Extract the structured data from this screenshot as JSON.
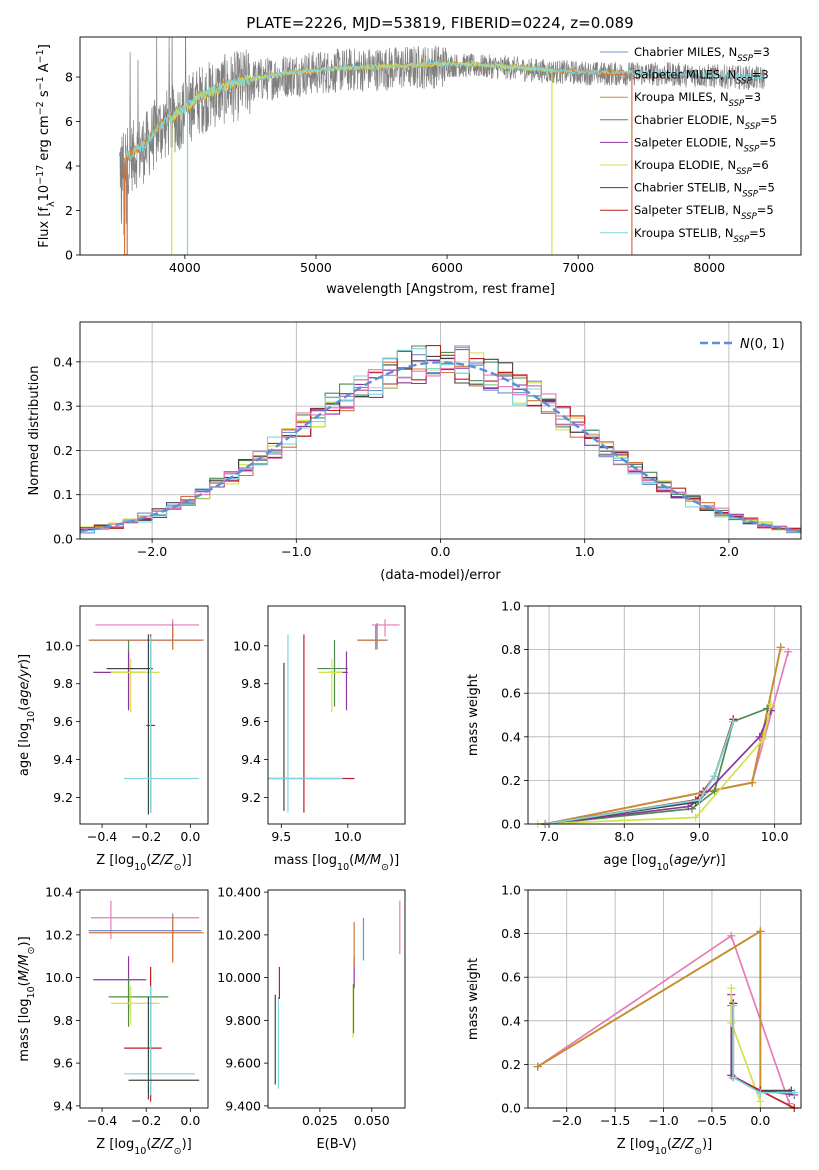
{
  "figure": {
    "title": "PLATE=2226, MJD=53819, FIBERID=0224, z=0.089"
  },
  "colors": {
    "chabrier_miles": "#6f8fd6",
    "salpeter_miles": "#d4743a",
    "kroupa_miles": "#c8902c",
    "chabrier_elodie": "#4d8b4d",
    "salpeter_elodie": "#8a35a0",
    "kroupa_elodie": "#d6e04a",
    "chabrier_stelib": "#444444",
    "salpeter_stelib": "#c11f1f",
    "kroupa_stelib": "#7fd6df",
    "pink": "#e87ab9",
    "data_gray": "#808080",
    "normal_line": "#5b8fd9"
  },
  "chart_data": [
    {
      "id": "spectrum",
      "type": "line",
      "xlabel": "wavelength [Angstrom, rest frame]",
      "ylabel": "Flux [f_λ10^-17 erg cm^-2 s^-1 A^-1]",
      "xlim": [
        3200,
        8700
      ],
      "ylim": [
        0,
        9.8
      ],
      "xticks": [
        4000,
        5000,
        6000,
        7000,
        8000
      ],
      "yticks": [
        0,
        2,
        4,
        6,
        8
      ],
      "legend_position": "upper right",
      "legend": [
        {
          "label": "Chabrier MILES, N_SSP=3",
          "color": "#6f8fd6"
        },
        {
          "label": "Salpeter MILES, N_SSP=3",
          "color": "#d4743a"
        },
        {
          "label": "Kroupa MILES, N_SSP=3",
          "color": "#c8902c"
        },
        {
          "label": "Chabrier ELODIE, N_SSP=5",
          "color": "#4d8b4d"
        },
        {
          "label": "Salpeter ELODIE, N_SSP=5",
          "color": "#8a35a0"
        },
        {
          "label": "Kroupa ELODIE, N_SSP=6",
          "color": "#d6e04a"
        },
        {
          "label": "Chabrier STELIB, N_SSP=5",
          "color": "#444444"
        },
        {
          "label": "Salpeter STELIB, N_SSP=5",
          "color": "#c11f1f"
        },
        {
          "label": "Kroupa STELIB, N_SSP=5",
          "color": "#7fd6df"
        }
      ],
      "model_continuum": {
        "x": [
          3500,
          3600,
          3700,
          3800,
          3900,
          4000,
          4100,
          4300,
          4500,
          4800,
          5200,
          5600,
          6000,
          6400,
          6800,
          7200,
          7600,
          8000,
          8400
        ],
        "y": [
          4.2,
          4.6,
          5.0,
          5.8,
          6.2,
          6.6,
          7.1,
          7.6,
          7.9,
          8.2,
          8.4,
          8.5,
          8.6,
          8.5,
          8.3,
          8.2,
          8.2,
          8.1,
          8.0
        ]
      },
      "model_range": {
        "MILES": [
          3540,
          7410
        ],
        "ELODIE": [
          3900,
          6800
        ],
        "STELIB": [
          3540,
          8700
        ]
      }
    },
    {
      "id": "residuals",
      "type": "histogram",
      "xlabel": "(data-model)/error",
      "ylabel": "Normed distribution",
      "xlim": [
        -2.5,
        2.5
      ],
      "ylim": [
        0,
        0.49
      ],
      "xticks": [
        -2,
        -1,
        0,
        1,
        2
      ],
      "yticks": [
        0.0,
        0.1,
        0.2,
        0.3,
        0.4
      ],
      "grid": true,
      "legend": [
        {
          "label": "N(0,1)",
          "style": "dashed",
          "color": "#5b8fd9"
        }
      ],
      "legend_position": "upper right",
      "bin_width": 0.1,
      "bin_start": -2.5
    },
    {
      "id": "age_vs_Z",
      "type": "errorbar",
      "xlabel": "Z [log10(Z/Z⊙)]",
      "ylabel": "age  [log10(age/yr)]",
      "xlim": [
        -0.5,
        0.08
      ],
      "ylim": [
        9.06,
        10.21
      ],
      "xticks": [
        -0.4,
        -0.2,
        0.0
      ],
      "yticks": [
        9.2,
        9.4,
        9.6,
        9.8,
        10.0
      ],
      "points": [
        {
          "c": "#e87ab9",
          "x": -0.08,
          "y": 10.11,
          "xe": [
            -0.43,
            0.04
          ],
          "ye": [
            10.05,
            10.14
          ]
        },
        {
          "c": "#6f8fd6",
          "x": -0.08,
          "y": 10.03,
          "xe": [
            -0.46,
            0.05
          ],
          "ye": [
            9.98,
            10.12
          ]
        },
        {
          "c": "#d4743a",
          "x": -0.08,
          "y": 10.03,
          "xe": [
            -0.46,
            0.06
          ],
          "ye": [
            9.98,
            10.11
          ]
        },
        {
          "c": "#4d8b4d",
          "x": -0.28,
          "y": 9.88,
          "xe": [
            -0.37,
            -0.19
          ],
          "ye": [
            9.68,
            10.03
          ]
        },
        {
          "c": "#8a35a0",
          "x": -0.28,
          "y": 9.86,
          "xe": [
            -0.44,
            -0.2
          ],
          "ye": [
            9.66,
            9.97
          ]
        },
        {
          "c": "#d6e04a",
          "x": -0.27,
          "y": 9.86,
          "xe": [
            -0.36,
            -0.14
          ],
          "ye": [
            9.65,
            9.93
          ]
        },
        {
          "c": "#444444",
          "x": -0.19,
          "y": 9.88,
          "xe": [
            -0.38,
            -0.17
          ],
          "ye": [
            9.11,
            10.06
          ]
        },
        {
          "c": "#c11f1f",
          "x": -0.18,
          "y": 9.58,
          "xe": [
            -0.2,
            -0.16
          ],
          "ye": [
            9.12,
            10.06
          ]
        },
        {
          "c": "#7fd6df",
          "x": -0.18,
          "y": 9.3,
          "xe": [
            -0.3,
            0.04
          ],
          "ye": [
            9.12,
            10.05
          ]
        }
      ]
    },
    {
      "id": "age_vs_mass",
      "type": "errorbar",
      "xlabel": "mass [log10(M/M⊙)]",
      "ylabel": "",
      "xlim": [
        9.4,
        10.43
      ],
      "ylim": [
        9.06,
        10.21
      ],
      "xticks": [
        9.5,
        10.0
      ],
      "yticks": [
        9.2,
        9.4,
        9.6,
        9.8,
        10.0
      ],
      "points": [
        {
          "c": "#e87ab9",
          "x": 10.28,
          "y": 10.11,
          "xe": [
            10.18,
            10.39
          ],
          "ye": [
            10.05,
            10.14
          ]
        },
        {
          "c": "#6f8fd6",
          "x": 10.22,
          "y": 10.03,
          "xe": [
            10.08,
            10.3
          ],
          "ye": [
            9.98,
            10.12
          ]
        },
        {
          "c": "#d4743a",
          "x": 10.21,
          "y": 10.03,
          "xe": [
            10.07,
            10.29
          ],
          "ye": [
            9.98,
            10.11
          ]
        },
        {
          "c": "#4d8b4d",
          "x": 9.9,
          "y": 9.88,
          "xe": [
            9.77,
            10.0
          ],
          "ye": [
            9.68,
            10.03
          ]
        },
        {
          "c": "#8a35a0",
          "x": 9.99,
          "y": 9.86,
          "xe": [
            9.85,
            10.0
          ],
          "ye": [
            9.66,
            9.97
          ]
        },
        {
          "c": "#d6e04a",
          "x": 9.88,
          "y": 9.86,
          "xe": [
            9.78,
            9.96
          ],
          "ye": [
            9.65,
            9.93
          ]
        },
        {
          "c": "#444444",
          "x": 9.52,
          "y": 9.58,
          "xe": [
            9.52,
            9.52
          ],
          "ye": [
            9.13,
            9.91
          ]
        },
        {
          "c": "#c11f1f",
          "x": 9.67,
          "y": 9.3,
          "xe": [
            9.4,
            10.05
          ],
          "ye": [
            9.12,
            10.06
          ]
        },
        {
          "c": "#7fd6df",
          "x": 9.55,
          "y": 9.3,
          "xe": [
            9.4,
            9.96
          ],
          "ye": [
            9.12,
            10.06
          ]
        }
      ]
    },
    {
      "id": "weight_vs_age",
      "type": "line",
      "xlabel": "age  [log10(age/yr)]",
      "ylabel": "mass weight",
      "xlim": [
        6.72,
        10.35
      ],
      "ylim": [
        0,
        1.0
      ],
      "xticks": [
        7,
        8,
        9,
        10
      ],
      "yticks": [
        0.0,
        0.2,
        0.4,
        0.6,
        0.8,
        1.0
      ],
      "grid": true,
      "series": [
        {
          "c": "#e87ab9",
          "x": [
            6.95,
            9.7,
            10.18
          ],
          "y": [
            0.0,
            0.19,
            0.79
          ]
        },
        {
          "c": "#6f8fd6",
          "x": [
            6.95,
            9.7,
            10.08
          ],
          "y": [
            0.0,
            0.19,
            0.81
          ]
        },
        {
          "c": "#d4743a",
          "x": [
            6.95,
            9.7,
            10.08
          ],
          "y": [
            0.0,
            0.19,
            0.81
          ]
        },
        {
          "c": "#c8902c",
          "x": [
            6.95,
            9.7,
            10.08
          ],
          "y": [
            0.0,
            0.19,
            0.81
          ]
        },
        {
          "c": "#4d8b4d",
          "x": [
            6.95,
            8.9,
            9.2,
            9.45,
            9.9
          ],
          "y": [
            0.0,
            0.07,
            0.15,
            0.47,
            0.53
          ]
        },
        {
          "c": "#8a35a0",
          "x": [
            6.95,
            8.85,
            9.0,
            9.8,
            9.95
          ],
          "y": [
            0.0,
            0.08,
            0.11,
            0.4,
            0.52
          ]
        },
        {
          "c": "#d6e04a",
          "x": [
            6.85,
            8.95,
            9.85,
            9.95
          ],
          "y": [
            0.0,
            0.03,
            0.39,
            0.55
          ]
        },
        {
          "c": "#444444",
          "x": [
            6.95,
            8.95,
            9.05,
            9.2,
            9.45
          ],
          "y": [
            0.0,
            0.1,
            0.14,
            0.22,
            0.48
          ]
        },
        {
          "c": "#c11f1f",
          "x": [
            6.95,
            8.95,
            9.05,
            9.2,
            9.45
          ],
          "y": [
            0.0,
            0.11,
            0.15,
            0.22,
            0.48
          ]
        },
        {
          "c": "#7fd6df",
          "x": [
            6.95,
            9.0,
            9.05,
            9.2,
            9.45
          ],
          "y": [
            0.0,
            0.11,
            0.14,
            0.22,
            0.47
          ]
        }
      ]
    },
    {
      "id": "mass_vs_Z",
      "type": "errorbar",
      "xlabel": "Z [log10(Z/Z⊙)]",
      "ylabel": "mass [log10(M/M⊙)]",
      "xlim": [
        -0.5,
        0.08
      ],
      "ylim": [
        9.39,
        10.41
      ],
      "xticks": [
        -0.4,
        -0.2,
        0.0
      ],
      "yticks": [
        9.4,
        9.6,
        9.8,
        10.0,
        10.2,
        10.4
      ],
      "points": [
        {
          "c": "#e87ab9",
          "x": -0.36,
          "y": 10.28,
          "xe": [
            -0.45,
            0.04
          ],
          "ye": [
            10.18,
            10.36
          ]
        },
        {
          "c": "#6f8fd6",
          "x": -0.08,
          "y": 10.22,
          "xe": [
            -0.46,
            0.05
          ],
          "ye": [
            10.08,
            10.3
          ]
        },
        {
          "c": "#d4743a",
          "x": -0.08,
          "y": 10.21,
          "xe": [
            -0.46,
            0.06
          ],
          "ye": [
            10.07,
            10.29
          ]
        },
        {
          "c": "#8a35a0",
          "x": -0.28,
          "y": 9.99,
          "xe": [
            -0.44,
            -0.2
          ],
          "ye": [
            9.85,
            10.1
          ]
        },
        {
          "c": "#4d8b4d",
          "x": -0.28,
          "y": 9.91,
          "xe": [
            -0.37,
            -0.1
          ],
          "ye": [
            9.77,
            10.0
          ]
        },
        {
          "c": "#d6e04a",
          "x": -0.27,
          "y": 9.88,
          "xe": [
            -0.36,
            -0.14
          ],
          "ye": [
            9.78,
            9.96
          ]
        },
        {
          "c": "#c11f1f",
          "x": -0.18,
          "y": 9.67,
          "xe": [
            -0.3,
            -0.13
          ],
          "ye": [
            9.42,
            10.05
          ]
        },
        {
          "c": "#7fd6df",
          "x": -0.18,
          "y": 9.55,
          "xe": [
            -0.3,
            0.02
          ],
          "ye": [
            9.45,
            9.96
          ]
        },
        {
          "c": "#444444",
          "x": -0.19,
          "y": 9.52,
          "xe": [
            -0.28,
            0.04
          ],
          "ye": [
            9.43,
            9.91
          ]
        }
      ]
    },
    {
      "id": "mass_vs_ebv",
      "type": "errorbar",
      "xlabel": "E(B-V)",
      "ylabel": "",
      "xlim": [
        0.0,
        0.066
      ],
      "ylim": [
        9.39,
        10.41
      ],
      "xticks": [
        0.025,
        0.05
      ],
      "yticks": [
        9.4,
        9.6,
        9.8,
        10.0,
        10.2,
        10.4
      ],
      "points": [
        {
          "c": "#444444",
          "x": 0.0035,
          "y": 9.7,
          "ye": [
            9.5,
            9.92
          ]
        },
        {
          "c": "#7fd6df",
          "x": 0.005,
          "y": 9.7,
          "ye": [
            9.48,
            9.91
          ]
        },
        {
          "c": "#c11f1f",
          "x": 0.0055,
          "y": 9.97,
          "ye": [
            9.9,
            10.05
          ]
        },
        {
          "c": "#8a35a0",
          "x": 0.0415,
          "y": 10.02,
          "ye": [
            9.95,
            10.1
          ]
        },
        {
          "c": "#d6e04a",
          "x": 0.041,
          "y": 9.85,
          "ye": [
            9.72,
            9.97
          ]
        },
        {
          "c": "#4d8b4d",
          "x": 0.0412,
          "y": 9.85,
          "ye": [
            9.74,
            9.97
          ]
        },
        {
          "c": "#d4743a",
          "x": 0.0415,
          "y": 10.15,
          "ye": [
            10.05,
            10.26
          ]
        },
        {
          "c": "#6f8fd6",
          "x": 0.046,
          "y": 10.18,
          "ye": [
            10.08,
            10.28
          ]
        },
        {
          "c": "#e87ab9",
          "x": 0.0635,
          "y": 10.24,
          "ye": [
            10.11,
            10.36
          ]
        }
      ]
    },
    {
      "id": "weight_vs_Z",
      "type": "line",
      "xlabel": "Z [log10(Z/Z⊙)]",
      "ylabel": "mass weight",
      "xlim": [
        -2.4,
        0.42
      ],
      "ylim": [
        0,
        1.0
      ],
      "xticks": [
        -2.0,
        -1.5,
        -1.0,
        -0.5,
        0.0
      ],
      "yticks": [
        0.0,
        0.2,
        0.4,
        0.6,
        0.8,
        1.0
      ],
      "grid": true,
      "series": [
        {
          "c": "#e87ab9",
          "x": [
            -2.3,
            -0.3,
            0.3
          ],
          "y": [
            0.19,
            0.79,
            0.02
          ]
        },
        {
          "c": "#6f8fd6",
          "x": [
            -2.3,
            0.0,
            0.0,
            0.3
          ],
          "y": [
            0.19,
            0.81,
            0.07,
            0.07
          ]
        },
        {
          "c": "#d4743a",
          "x": [
            -2.3,
            0.0,
            0.0,
            0.3
          ],
          "y": [
            0.19,
            0.81,
            0.07,
            0.07
          ]
        },
        {
          "c": "#c8902c",
          "x": [
            -2.3,
            0.0,
            0.0,
            0.3
          ],
          "y": [
            0.19,
            0.81,
            0.07,
            0.07
          ]
        },
        {
          "c": "#4d8b4d",
          "x": [
            -0.3,
            -0.3,
            0.0,
            0.3
          ],
          "y": [
            0.47,
            0.15,
            0.07,
            0.07
          ]
        },
        {
          "c": "#8a35a0",
          "x": [
            -0.3,
            -0.3,
            0.0,
            0.35
          ],
          "y": [
            0.52,
            0.15,
            0.08,
            0.06
          ]
        },
        {
          "c": "#d6e04a",
          "x": [
            -0.3,
            -0.3,
            0.0
          ],
          "y": [
            0.55,
            0.39,
            0.03
          ]
        },
        {
          "c": "#444444",
          "x": [
            -0.28,
            -0.28,
            0.0,
            0.32
          ],
          "y": [
            0.48,
            0.14,
            0.08,
            0.08
          ]
        },
        {
          "c": "#c11f1f",
          "x": [
            -0.28,
            -0.28,
            0.0,
            0.35
          ],
          "y": [
            0.48,
            0.14,
            0.08,
            0.0
          ]
        },
        {
          "c": "#7fd6df",
          "x": [
            -0.28,
            -0.28,
            0.0,
            0.35
          ],
          "y": [
            0.47,
            0.14,
            0.07,
            0.07
          ]
        }
      ]
    }
  ]
}
